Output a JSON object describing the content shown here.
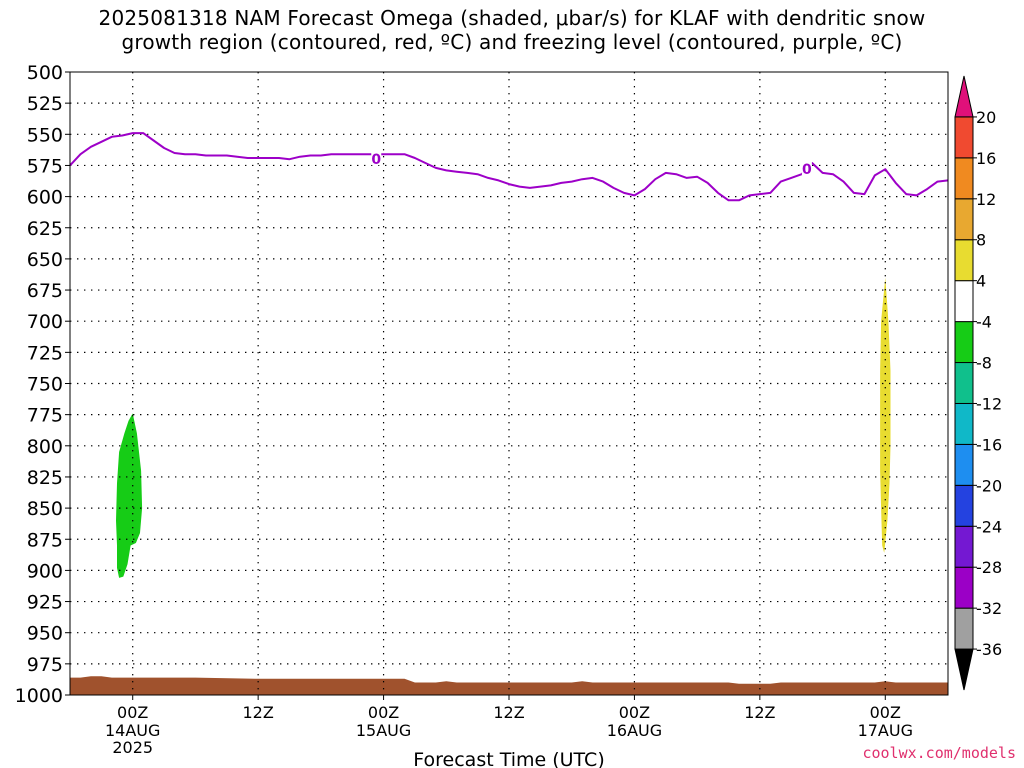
{
  "chart_data": {
    "type": "heatmap",
    "title_line1": "2025081318 NAM Forecast Omega (shaded, μbar/s) for KLAF with dendritic snow",
    "title_line2": "growth region (contoured, red, ºC) and freezing level (contoured, purple, ºC)",
    "xlabel": "Forecast Time (UTC)",
    "x_range_hours": [
      18,
      102
    ],
    "x_ticks": [
      {
        "hour": 24,
        "label": "00Z",
        "sub1": "14AUG",
        "sub2": "2025"
      },
      {
        "hour": 36,
        "label": "12Z",
        "sub1": "",
        "sub2": ""
      },
      {
        "hour": 48,
        "label": "00Z",
        "sub1": "15AUG",
        "sub2": ""
      },
      {
        "hour": 60,
        "label": "12Z",
        "sub1": "",
        "sub2": ""
      },
      {
        "hour": 72,
        "label": "00Z",
        "sub1": "16AUG",
        "sub2": ""
      },
      {
        "hour": 84,
        "label": "12Z",
        "sub1": "",
        "sub2": ""
      },
      {
        "hour": 96,
        "label": "00Z",
        "sub1": "17AUG",
        "sub2": ""
      }
    ],
    "y_levels": [
      "500",
      "525",
      "550",
      "575",
      "600",
      "625",
      "650",
      "675",
      "700",
      "725",
      "750",
      "775",
      "800",
      "825",
      "850",
      "875",
      "900",
      "925",
      "950",
      "975",
      "1000"
    ],
    "y_range_hpa": [
      500,
      1000
    ],
    "grid": true,
    "colorbar": {
      "colors": [
        "#000000",
        "#a0a0a0",
        "#9b00c6",
        "#7418d2",
        "#2442e0",
        "#1e8ef0",
        "#10b8c8",
        "#10c08c",
        "#16cc16",
        "#ffffff",
        "#e8dc30",
        "#e8a830",
        "#f08a20",
        "#f04a30",
        "#e0107a"
      ],
      "labels": [
        "-36",
        "-32",
        "-28",
        "-24",
        "-20",
        "-16",
        "-12",
        "-8",
        "-4",
        "4",
        "8",
        "12",
        "16",
        "20"
      ]
    },
    "freezing_level": {
      "color": "#9d00c8",
      "label": "0",
      "points": [
        [
          18,
          575
        ],
        [
          19,
          566
        ],
        [
          20,
          560
        ],
        [
          21,
          556
        ],
        [
          22,
          552
        ],
        [
          23,
          551
        ],
        [
          24,
          549
        ],
        [
          25,
          549
        ],
        [
          26,
          555
        ],
        [
          27,
          561
        ],
        [
          28,
          565
        ],
        [
          29,
          566
        ],
        [
          30,
          566
        ],
        [
          31,
          567
        ],
        [
          32,
          567
        ],
        [
          33,
          567
        ],
        [
          34,
          568
        ],
        [
          35,
          569
        ],
        [
          36,
          569
        ],
        [
          37,
          569
        ],
        [
          38,
          569
        ],
        [
          39,
          570
        ],
        [
          40,
          568
        ],
        [
          41,
          567
        ],
        [
          42,
          567
        ],
        [
          43,
          566
        ],
        [
          44,
          566
        ],
        [
          45,
          566
        ],
        [
          46,
          566
        ],
        [
          47,
          566
        ],
        [
          48,
          566
        ],
        [
          49,
          566
        ],
        [
          50,
          566
        ],
        [
          51,
          569
        ],
        [
          52,
          573
        ],
        [
          53,
          577
        ],
        [
          54,
          579
        ],
        [
          55,
          580
        ],
        [
          56,
          581
        ],
        [
          57,
          582
        ],
        [
          58,
          585
        ],
        [
          59,
          587
        ],
        [
          60,
          590
        ],
        [
          61,
          592
        ],
        [
          62,
          593
        ],
        [
          63,
          592
        ],
        [
          64,
          591
        ],
        [
          65,
          589
        ],
        [
          66,
          588
        ],
        [
          67,
          586
        ],
        [
          68,
          585
        ],
        [
          69,
          588
        ],
        [
          70,
          593
        ],
        [
          71,
          597
        ],
        [
          72,
          599
        ],
        [
          73,
          594
        ],
        [
          74,
          586
        ],
        [
          75,
          581
        ],
        [
          76,
          582
        ],
        [
          77,
          585
        ],
        [
          78,
          584
        ],
        [
          79,
          589
        ],
        [
          80,
          597
        ],
        [
          81,
          603
        ],
        [
          82,
          603
        ],
        [
          83,
          599
        ],
        [
          84,
          598
        ],
        [
          85,
          597
        ],
        [
          86,
          588
        ],
        [
          87,
          585
        ],
        [
          88,
          582
        ],
        [
          89,
          573
        ],
        [
          90,
          581
        ],
        [
          91,
          582
        ],
        [
          92,
          588
        ],
        [
          93,
          597
        ],
        [
          94,
          598
        ],
        [
          95,
          583
        ],
        [
          96,
          578
        ],
        [
          97,
          589
        ],
        [
          98,
          598
        ],
        [
          99,
          599
        ],
        [
          100,
          594
        ],
        [
          101,
          588
        ],
        [
          102,
          587
        ]
      ],
      "label_positions": [
        [
          47.3,
          570
        ],
        [
          88.5,
          578
        ]
      ]
    },
    "omega_shades": [
      {
        "name": "green-region",
        "value_range": [
          -8,
          -4
        ],
        "color": "#16cc16",
        "points": [
          [
            24.0,
            774
          ],
          [
            24.4,
            790
          ],
          [
            24.8,
            820
          ],
          [
            24.9,
            850
          ],
          [
            24.7,
            870
          ],
          [
            24.3,
            878
          ],
          [
            23.8,
            880
          ],
          [
            23.5,
            895
          ],
          [
            23.1,
            905
          ],
          [
            22.7,
            906
          ],
          [
            22.5,
            898
          ],
          [
            22.5,
            880
          ],
          [
            22.4,
            860
          ],
          [
            22.5,
            830
          ],
          [
            22.7,
            805
          ],
          [
            23.2,
            790
          ],
          [
            23.6,
            780
          ]
        ]
      },
      {
        "name": "yellow-region",
        "value_range": [
          4,
          8
        ],
        "color": "#e8dc30",
        "points": [
          [
            96.0,
            665
          ],
          [
            96.3,
            700
          ],
          [
            96.5,
            740
          ],
          [
            96.5,
            800
          ],
          [
            96.4,
            830
          ],
          [
            96.2,
            860
          ],
          [
            95.9,
            886
          ],
          [
            95.7,
            880
          ],
          [
            95.6,
            850
          ],
          [
            95.5,
            820
          ],
          [
            95.5,
            780
          ],
          [
            95.5,
            740
          ],
          [
            95.6,
            700
          ]
        ]
      }
    ],
    "terrain": {
      "color": "#a0522d",
      "top_points": [
        [
          18,
          986
        ],
        [
          19,
          986
        ],
        [
          20,
          985
        ],
        [
          21,
          985
        ],
        [
          22,
          986
        ],
        [
          23,
          986
        ],
        [
          24,
          986
        ],
        [
          30,
          986
        ],
        [
          36,
          987
        ],
        [
          42,
          987
        ],
        [
          48,
          987
        ],
        [
          50,
          987
        ],
        [
          51,
          990
        ],
        [
          53,
          990
        ],
        [
          54,
          989
        ],
        [
          55,
          990
        ],
        [
          57,
          990
        ],
        [
          59,
          990
        ],
        [
          60,
          990
        ],
        [
          66,
          990
        ],
        [
          67,
          989
        ],
        [
          68,
          990
        ],
        [
          72,
          990
        ],
        [
          78,
          990
        ],
        [
          81,
          990
        ],
        [
          82,
          991
        ],
        [
          84,
          991
        ],
        [
          85,
          991
        ],
        [
          86,
          990
        ],
        [
          93,
          990
        ],
        [
          95,
          990
        ],
        [
          96,
          989
        ],
        [
          97,
          990
        ],
        [
          102,
          990
        ]
      ]
    }
  },
  "watermark": "coolwx.com/models"
}
